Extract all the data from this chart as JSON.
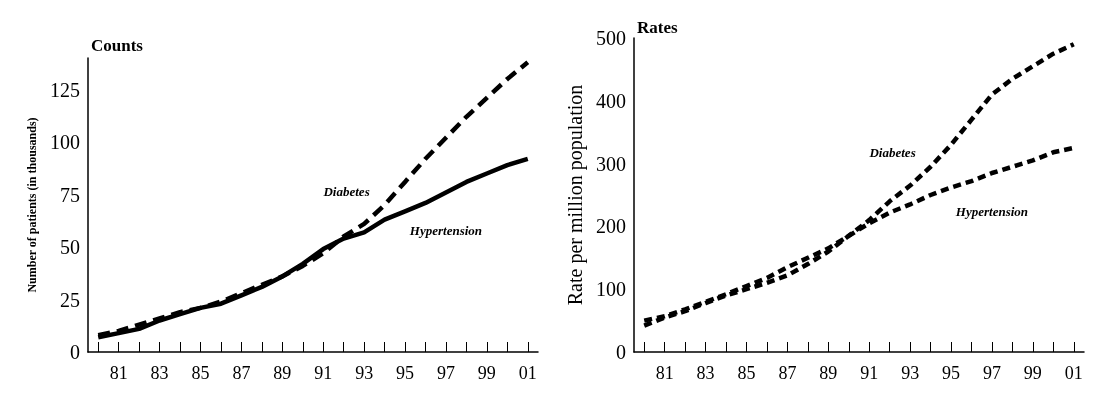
{
  "chart_data": [
    {
      "type": "line",
      "title": "Counts",
      "ylabel": "Number of patients (in thousands)",
      "categories": [
        null,
        "81",
        null,
        "83",
        null,
        "85",
        null,
        "87",
        null,
        "89",
        null,
        "91",
        null,
        "93",
        null,
        "95",
        null,
        "97",
        null,
        "99",
        null,
        "01"
      ],
      "series": [
        {
          "name": "Diabetes",
          "color": "#000000",
          "line_style": "dashed",
          "values": [
            8,
            10,
            13,
            16,
            19,
            21,
            24,
            28,
            32,
            36,
            41,
            47,
            55,
            61,
            70,
            81,
            92,
            102,
            112,
            121,
            130,
            138
          ]
        },
        {
          "name": "Hypertension",
          "color": "#000000",
          "line_style": "solid",
          "values": [
            7,
            9,
            11,
            15,
            18,
            21,
            23,
            27,
            31,
            36,
            42,
            49,
            54,
            57,
            63,
            67,
            71,
            76,
            81,
            85,
            89,
            92
          ]
        }
      ],
      "ylim": [
        0,
        140
      ],
      "yticks": [
        0,
        25,
        50,
        75,
        100,
        125
      ],
      "grid": false,
      "legend": false,
      "marker": "none"
    },
    {
      "type": "line",
      "title": "Rates",
      "ylabel": "Rate per million population",
      "categories": [
        null,
        "81",
        null,
        "83",
        null,
        "85",
        null,
        "87",
        null,
        "89",
        null,
        "91",
        null,
        "93",
        null,
        "95",
        null,
        "97",
        null,
        "99",
        null,
        "01"
      ],
      "series": [
        {
          "name": "Diabetes",
          "color": "#000000",
          "line_style": "dashed",
          "values": [
            42,
            55,
            65,
            78,
            90,
            100,
            110,
            122,
            140,
            160,
            185,
            210,
            240,
            265,
            295,
            330,
            370,
            410,
            435,
            455,
            475,
            490
          ]
        },
        {
          "name": "Hypertension",
          "color": "#000000",
          "line_style": "dashed",
          "values": [
            50,
            57,
            68,
            80,
            92,
            105,
            118,
            135,
            150,
            165,
            185,
            205,
            222,
            235,
            250,
            262,
            272,
            285,
            295,
            305,
            318,
            325
          ]
        }
      ],
      "ylim": [
        0,
        500
      ],
      "yticks": [
        0,
        100,
        200,
        300,
        400,
        500
      ],
      "grid": false,
      "legend": false,
      "marker": "none"
    }
  ]
}
